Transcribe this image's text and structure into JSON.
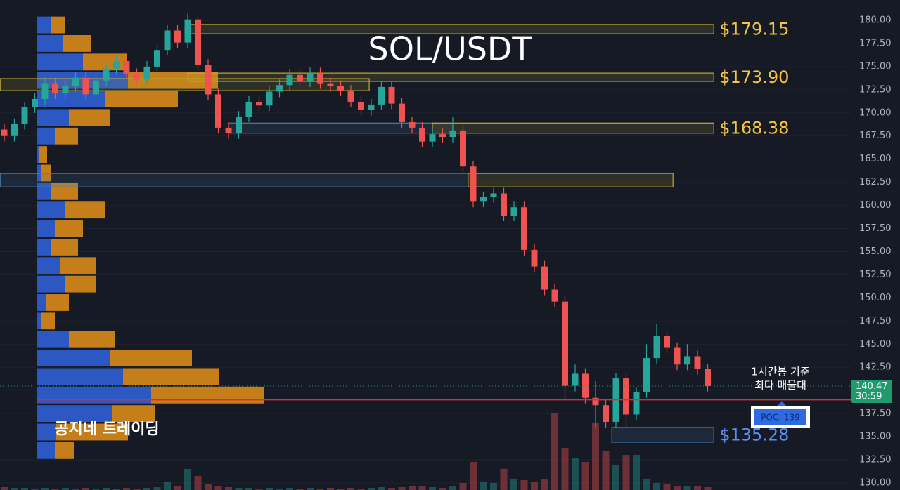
{
  "chart_data": {
    "type": "candlestick",
    "title": "SOL/USDT",
    "watermark": "공지네 트레이딩",
    "note": [
      "1시간봉 기준",
      "최다 매물대"
    ],
    "ylim": [
      129.24,
      182.2
    ],
    "yticks": [
      {
        "value": 130,
        "label": "130.00"
      },
      {
        "value": 132.5,
        "label": "132.50"
      },
      {
        "value": 135,
        "label": "135.00"
      },
      {
        "value": 137.5,
        "label": "137.50"
      },
      {
        "value": 140,
        "label": "140.00"
      },
      {
        "value": 142.5,
        "label": "142.50"
      },
      {
        "value": 145,
        "label": "145.00"
      },
      {
        "value": 147.5,
        "label": "147.50"
      },
      {
        "value": 150,
        "label": "150.00"
      },
      {
        "value": 152.5,
        "label": "152.50"
      },
      {
        "value": 155,
        "label": "155.00"
      },
      {
        "value": 157.5,
        "label": "157.50"
      },
      {
        "value": 160,
        "label": "160.00"
      },
      {
        "value": 162.5,
        "label": "162.50"
      },
      {
        "value": 165,
        "label": "165.00"
      },
      {
        "value": 167.5,
        "label": "167.50"
      },
      {
        "value": 170,
        "label": "170.00"
      },
      {
        "value": 172.5,
        "label": "172.50"
      },
      {
        "value": 175,
        "label": "175.00"
      },
      {
        "value": 177.5,
        "label": "177.50"
      },
      {
        "value": 180,
        "label": "180.00"
      }
    ],
    "grid": true,
    "up_color": "#26a69a",
    "down_color": "#ef5350",
    "open": [
      168.2,
      167.5,
      168.8,
      170.6,
      171.5,
      173.2,
      172.1,
      172.9,
      173.8,
      172.0,
      173.5,
      174.8,
      175.6,
      174.2,
      173.6,
      175.0,
      176.8,
      178.9,
      177.6,
      180.1,
      175.2,
      172.0,
      168.4,
      167.8,
      169.6,
      171.2,
      170.8,
      172.3,
      173.0,
      174.1,
      173.4,
      174.3,
      173.2,
      172.9,
      172.4,
      171.2,
      170.3,
      170.9,
      172.8,
      171.0,
      169.0,
      168.4,
      166.9,
      167.7,
      167.4,
      168.1,
      164.2,
      160.4,
      160.9,
      161.3,
      158.9,
      159.8,
      155.2,
      153.4,
      150.9,
      149.6,
      140.5,
      141.8,
      139.2,
      138.4,
      136.6,
      141.3,
      137.4,
      139.8,
      143.5,
      145.9,
      144.6,
      142.8,
      143.7,
      142.3
    ],
    "high": [
      168.8,
      169.4,
      171.2,
      172.1,
      173.8,
      173.8,
      173.5,
      174.4,
      174.4,
      174.1,
      175.4,
      176.2,
      176.2,
      174.8,
      175.6,
      177.4,
      179.5,
      179.5,
      180.7,
      180.4,
      175.8,
      172.6,
      169.0,
      170.2,
      171.8,
      171.8,
      172.9,
      173.6,
      174.7,
      174.7,
      174.9,
      174.9,
      173.8,
      173.5,
      173.0,
      171.8,
      171.5,
      173.4,
      173.4,
      171.6,
      169.6,
      169.0,
      168.3,
      168.3,
      169.6,
      168.7,
      164.8,
      161.5,
      161.9,
      161.9,
      160.4,
      160.4,
      155.8,
      154.0,
      151.5,
      150.2,
      142.8,
      142.4,
      141.0,
      139.0,
      141.9,
      141.9,
      140.4,
      145.0,
      147.2,
      146.5,
      145.2,
      145.0,
      144.3,
      142.9
    ],
    "low": [
      166.9,
      166.9,
      168.2,
      170.0,
      170.9,
      171.5,
      171.5,
      172.3,
      171.4,
      171.4,
      172.9,
      174.2,
      173.6,
      173.0,
      173.0,
      174.4,
      176.2,
      177.0,
      177.0,
      174.6,
      171.4,
      167.8,
      167.2,
      167.2,
      169.0,
      170.2,
      170.2,
      171.7,
      172.4,
      172.8,
      172.8,
      172.6,
      172.3,
      171.8,
      170.6,
      169.7,
      169.7,
      170.3,
      170.4,
      168.4,
      167.8,
      166.3,
      166.3,
      166.8,
      166.8,
      163.6,
      159.8,
      159.8,
      160.3,
      158.3,
      158.3,
      154.6,
      152.8,
      150.3,
      149.0,
      139.0,
      139.9,
      138.6,
      136.0,
      136.0,
      136.0,
      136.0,
      136.8,
      139.2,
      142.9,
      144.0,
      142.2,
      142.2,
      141.7,
      139.9
    ],
    "close": [
      167.5,
      168.8,
      170.6,
      171.5,
      173.2,
      172.1,
      172.9,
      173.8,
      172.0,
      173.5,
      174.8,
      175.6,
      174.2,
      173.6,
      175.0,
      176.8,
      178.9,
      177.6,
      180.1,
      175.2,
      172.0,
      168.4,
      167.8,
      169.6,
      171.2,
      170.8,
      172.3,
      173.0,
      174.1,
      173.4,
      174.3,
      173.2,
      172.9,
      172.4,
      171.2,
      170.3,
      170.9,
      172.8,
      171.0,
      169.0,
      168.4,
      166.9,
      167.7,
      167.4,
      168.1,
      164.2,
      160.4,
      160.9,
      161.3,
      158.9,
      159.8,
      155.2,
      153.4,
      150.9,
      149.6,
      140.5,
      141.8,
      139.2,
      138.4,
      136.6,
      141.3,
      137.4,
      139.8,
      143.5,
      145.9,
      144.6,
      142.8,
      143.7,
      142.3,
      140.47
    ],
    "volume": [
      4,
      3,
      3,
      2,
      3,
      2,
      3,
      2,
      3,
      2,
      3,
      2,
      3,
      2,
      3,
      4,
      12,
      5,
      30,
      20,
      8,
      6,
      4,
      3,
      3,
      2,
      3,
      2,
      3,
      2,
      3,
      2,
      3,
      2,
      3,
      2,
      3,
      4,
      3,
      4,
      5,
      6,
      4,
      3,
      5,
      10,
      40,
      12,
      10,
      30,
      15,
      14,
      12,
      15,
      110,
      60,
      45,
      40,
      95,
      55,
      35,
      50,
      50,
      15,
      10,
      8,
      6,
      5,
      6,
      4
    ],
    "profile": {
      "prices": [
        179.5,
        177.5,
        175.5,
        173.5,
        171.5,
        169.5,
        167.5,
        165.5,
        163.5,
        161.5,
        159.5,
        157.5,
        155.5,
        153.5,
        151.5,
        149.5,
        147.5,
        145.5,
        143.5,
        141.5,
        139.5,
        137.5,
        135.5,
        133.5
      ],
      "buy": [
        20,
        38,
        66,
        130,
        98,
        46,
        26,
        3,
        6,
        20,
        40,
        26,
        20,
        33,
        40,
        13,
        7,
        46,
        105,
        123,
        163,
        108,
        28,
        26
      ],
      "sell": [
        20,
        40,
        62,
        128,
        103,
        59,
        33,
        12,
        15,
        39,
        58,
        40,
        39,
        52,
        45,
        33,
        19,
        65,
        116,
        136,
        161,
        61,
        102,
        27
      ],
      "buy_color": "#2f5fd6",
      "sell_color": "#d98a1a"
    },
    "zones": [
      {
        "top": 179.55,
        "bottom": 178.55,
        "from": 18,
        "to": 69.6,
        "color": "#bfa930",
        "label": "$179.15",
        "label_color": "#f5c542"
      },
      {
        "top": 174.3,
        "bottom": 173.4,
        "from": 18,
        "to": 69.6,
        "color": "#bfa930",
        "label": "$173.90",
        "label_color": "#f5c542"
      },
      {
        "top": 173.7,
        "bottom": 172.4,
        "from": -0.4,
        "to": 35.8,
        "color": "#bfa930"
      },
      {
        "top": 168.9,
        "bottom": 167.8,
        "from": 22,
        "to": 44,
        "color": "#4a7ab0"
      },
      {
        "top": 168.9,
        "bottom": 167.8,
        "from": 42,
        "to": 69.6,
        "color": "#bfa930",
        "label": "$168.38",
        "label_color": "#f5c542"
      },
      {
        "top": 163.45,
        "bottom": 162.0,
        "from": -0.4,
        "to": 45.5,
        "color": "#4a7ab0"
      },
      {
        "top": 163.45,
        "bottom": 162.0,
        "from": 45.5,
        "to": 65.6,
        "color": "#bfa930"
      },
      {
        "top": 136.0,
        "bottom": 134.4,
        "from": 59.6,
        "to": 69.6,
        "color": "#4a7ab0",
        "label": "$135.28",
        "label_color": "#5b8def"
      }
    ],
    "poc": {
      "value": 139,
      "label": "POC. 139",
      "color": "#e32b2b"
    },
    "last_price": {
      "value": 140.47,
      "timer": "30:59",
      "color": "#1f9a6c"
    }
  }
}
